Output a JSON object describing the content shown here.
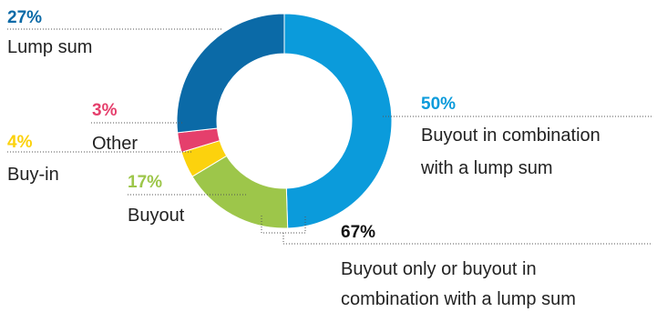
{
  "chart_data": {
    "type": "donut",
    "unit": "%",
    "slices": [
      {
        "label": "Buyout in combination with a lump sum",
        "label_lines": [
          "Buyout in combination",
          "with a lump sum"
        ],
        "value": 50,
        "value_text": "50%",
        "color": "#0b9bdb"
      },
      {
        "label": "Buyout",
        "label_lines": [
          "Buyout"
        ],
        "value": 17,
        "value_text": "17%",
        "color": "#9dc64a"
      },
      {
        "label": "Buy-in",
        "label_lines": [
          "Buy-in"
        ],
        "value": 4,
        "value_text": "4%",
        "color": "#fcd20d"
      },
      {
        "label": "Other",
        "label_lines": [
          "Other"
        ],
        "value": 3,
        "value_text": "3%",
        "color": "#e53f6c"
      },
      {
        "label": "Lump sum",
        "label_lines": [
          "Lump sum"
        ],
        "value": 27,
        "value_text": "27%",
        "color": "#0b6aa7"
      }
    ],
    "annotation": {
      "value_text": "67%",
      "label_lines": [
        "Buyout only or buyout in",
        "combination with a lump sum"
      ],
      "combines": [
        "Buyout in combination with a lump sum",
        "Buyout"
      ],
      "color": "#111111"
    }
  }
}
